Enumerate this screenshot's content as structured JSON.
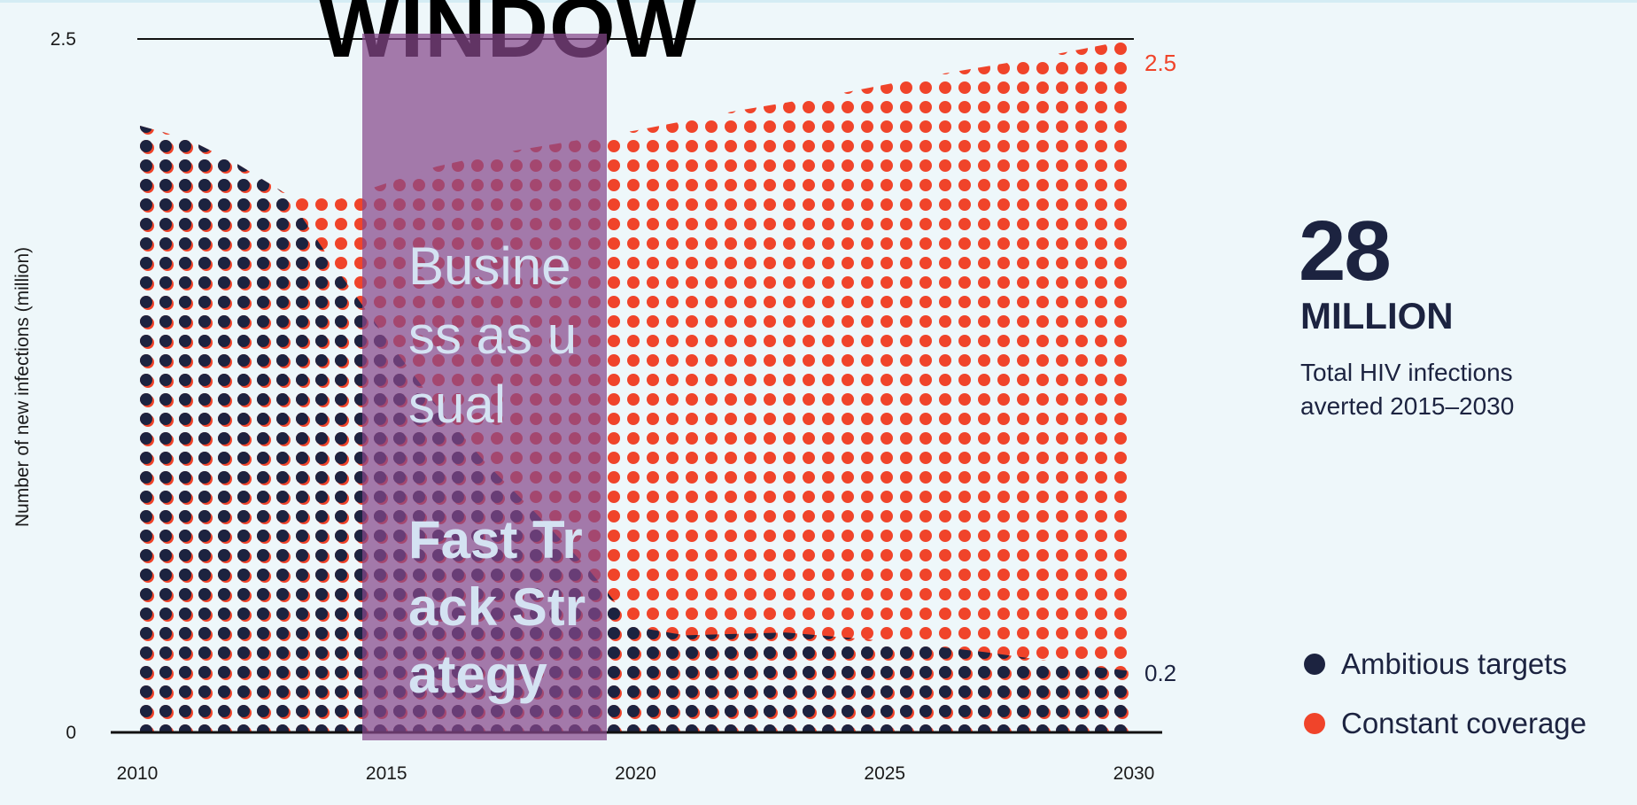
{
  "window_title": "WINDOW",
  "overlay": {
    "business_as_usual": "Business as usual",
    "fast_track": "Fast Track Strategy"
  },
  "stat": {
    "number": "28",
    "unit": "MILLION",
    "description": "Total HIV infections averted 2015–2030"
  },
  "colors": {
    "ambitious": "#1c2340",
    "constant": "#f0442a",
    "overlay": "#86488a"
  },
  "chart_data": {
    "type": "area",
    "title": "",
    "xlabel": "",
    "ylabel": "Number of new infections (million)",
    "xlim": [
      2010,
      2030
    ],
    "ylim": [
      0,
      2.5
    ],
    "x_ticks": [
      "2010",
      "2015",
      "2020",
      "2025",
      "2030"
    ],
    "y_ticks": [
      "0",
      "2.5"
    ],
    "end_labels": {
      "constant": "2.5",
      "ambitious": "0.2"
    },
    "legend_position": "right",
    "series": [
      {
        "name": "Constant coverage",
        "key": "constant",
        "x": [
          2010,
          2011,
          2012,
          2013,
          2014,
          2015,
          2016,
          2017,
          2018,
          2019,
          2020,
          2022,
          2024,
          2026,
          2028,
          2030
        ],
        "values": [
          2.19,
          2.14,
          2.05,
          1.94,
          1.92,
          1.98,
          2.04,
          2.08,
          2.11,
          2.14,
          2.17,
          2.24,
          2.3,
          2.37,
          2.43,
          2.5
        ]
      },
      {
        "name": "Ambitious targets",
        "key": "ambitious",
        "x": [
          2010,
          2011,
          2012,
          2013,
          2014,
          2015,
          2016,
          2017,
          2018,
          2019,
          2020,
          2021,
          2023,
          2025,
          2027,
          2029,
          2030
        ],
        "values": [
          2.19,
          2.14,
          2.05,
          1.94,
          1.67,
          1.42,
          1.18,
          0.97,
          0.79,
          0.6,
          0.38,
          0.35,
          0.36,
          0.33,
          0.29,
          0.24,
          0.22
        ]
      }
    ]
  }
}
